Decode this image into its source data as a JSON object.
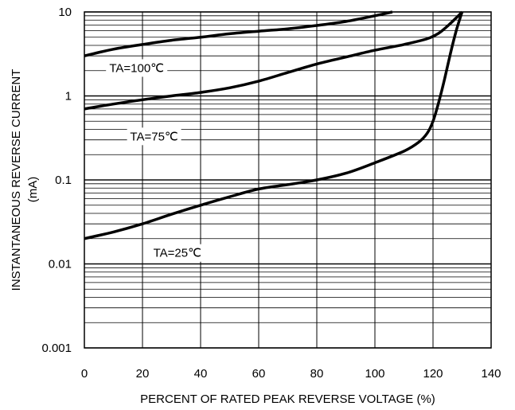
{
  "chart_data": {
    "type": "line",
    "xlabel": "PERCENT OF RATED PEAK REVERSE VOLTAGE (%)",
    "ylabel": "INSTANTANEOUS REVERSE CURRENT",
    "ylabel_unit": "(mA)",
    "x_scale": "linear",
    "y_scale": "log",
    "xlim": [
      0,
      140
    ],
    "ylim": [
      0.001,
      10
    ],
    "grid": true,
    "x_ticks": [
      0,
      20,
      40,
      60,
      80,
      100,
      120,
      140
    ],
    "x_tick_labels": [
      "0",
      "20",
      "40",
      "60",
      "80",
      "100",
      "120",
      "140"
    ],
    "y_ticks": [
      0.001,
      0.01,
      0.1,
      1,
      10
    ],
    "y_tick_labels": [
      "0.001",
      "0.01",
      "0.1",
      "1",
      "10"
    ],
    "series": [
      {
        "name": "TA=100℃",
        "x": [
          0,
          10,
          20,
          30,
          40,
          50,
          60,
          70,
          80,
          90,
          100,
          106
        ],
        "y": [
          3.0,
          3.6,
          4.1,
          4.6,
          5.0,
          5.5,
          5.9,
          6.3,
          6.9,
          7.7,
          9.0,
          10
        ]
      },
      {
        "name": "TA=75℃",
        "x": [
          0,
          10,
          20,
          30,
          40,
          50,
          60,
          70,
          80,
          90,
          100,
          110,
          118,
          122,
          125,
          128,
          130
        ],
        "y": [
          0.7,
          0.8,
          0.9,
          1.0,
          1.1,
          1.25,
          1.5,
          1.9,
          2.4,
          2.9,
          3.5,
          4.1,
          4.8,
          5.6,
          6.8,
          8.5,
          10
        ]
      },
      {
        "name": "TA=25℃",
        "x": [
          0,
          10,
          20,
          30,
          40,
          50,
          60,
          70,
          80,
          90,
          100,
          110,
          115,
          118,
          120,
          122,
          124,
          126,
          128,
          130
        ],
        "y": [
          0.02,
          0.024,
          0.03,
          0.039,
          0.05,
          0.063,
          0.078,
          0.088,
          0.1,
          0.12,
          0.16,
          0.22,
          0.28,
          0.36,
          0.5,
          0.85,
          1.6,
          3.2,
          6.0,
          10
        ]
      }
    ],
    "annotations": [
      {
        "text": "TA=100℃",
        "x": 18,
        "y": 2.15
      },
      {
        "text": "TA=75℃",
        "x": 24,
        "y": 0.33
      },
      {
        "text": "TA=25℃",
        "x": 32,
        "y": 0.0135
      }
    ]
  }
}
